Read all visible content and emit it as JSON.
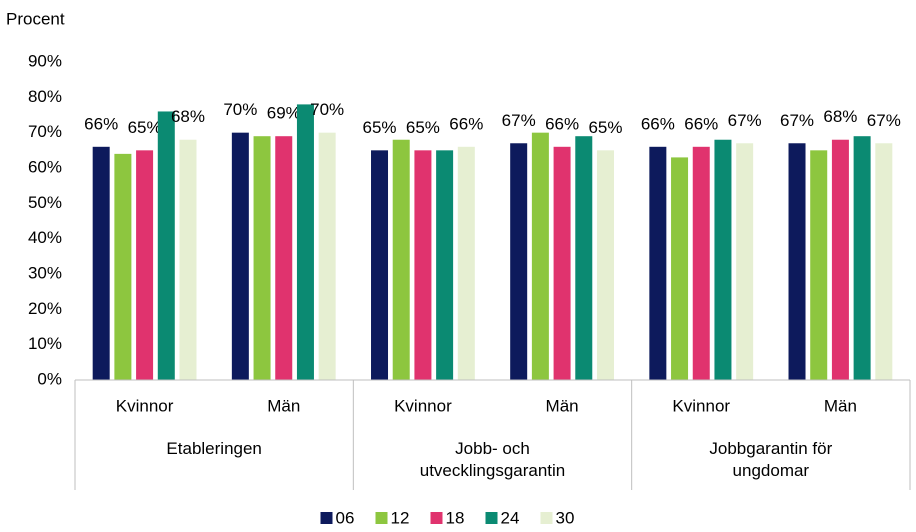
{
  "chart_data": {
    "type": "bar",
    "y_label": "Procent",
    "categories": [
      "Kvinnor",
      "Män",
      "Kvinnor",
      "Män",
      "Kvinnor",
      "Män"
    ],
    "groups": [
      "Etableringen",
      "Jobb- och utvecklingsgarantin",
      "Jobbgarantin för ungdomar"
    ],
    "ylim": [
      0,
      90
    ],
    "yticks": [
      {
        "value": 0,
        "label": "0%"
      },
      {
        "value": 10,
        "label": "10%"
      },
      {
        "value": 20,
        "label": "20%"
      },
      {
        "value": 30,
        "label": "30%"
      },
      {
        "value": 40,
        "label": "40%"
      },
      {
        "value": 50,
        "label": "50%"
      },
      {
        "value": 60,
        "label": "60%"
      },
      {
        "value": 70,
        "label": "70%"
      },
      {
        "value": 80,
        "label": "80%"
      },
      {
        "value": 90,
        "label": "90%"
      }
    ],
    "grid": false,
    "legend": "bottom",
    "series": [
      {
        "name": "06",
        "color": "#0d1a5c",
        "values": [
          66,
          70,
          65,
          67,
          66,
          67
        ],
        "value_labels": [
          "66%",
          "70%",
          "65%",
          "67%",
          "66%",
          "67%"
        ]
      },
      {
        "name": "12",
        "color": "#8dc63f",
        "values": [
          64,
          69,
          68,
          70,
          63,
          65
        ]
      },
      {
        "name": "18",
        "color": "#e0336e",
        "values": [
          65,
          69,
          65,
          66,
          66,
          68
        ],
        "value_labels": [
          "65%",
          "69%",
          "65%",
          "66%",
          "66%",
          "68%"
        ]
      },
      {
        "name": "24",
        "color": "#0b8a72",
        "values": [
          76,
          78,
          65,
          69,
          68,
          69
        ]
      },
      {
        "name": "30",
        "color": "#e6efd2",
        "values": [
          68,
          70,
          66,
          65,
          67,
          67
        ],
        "value_labels": [
          "68%",
          "70%",
          "66%",
          "65%",
          "67%",
          "67%"
        ]
      }
    ]
  }
}
